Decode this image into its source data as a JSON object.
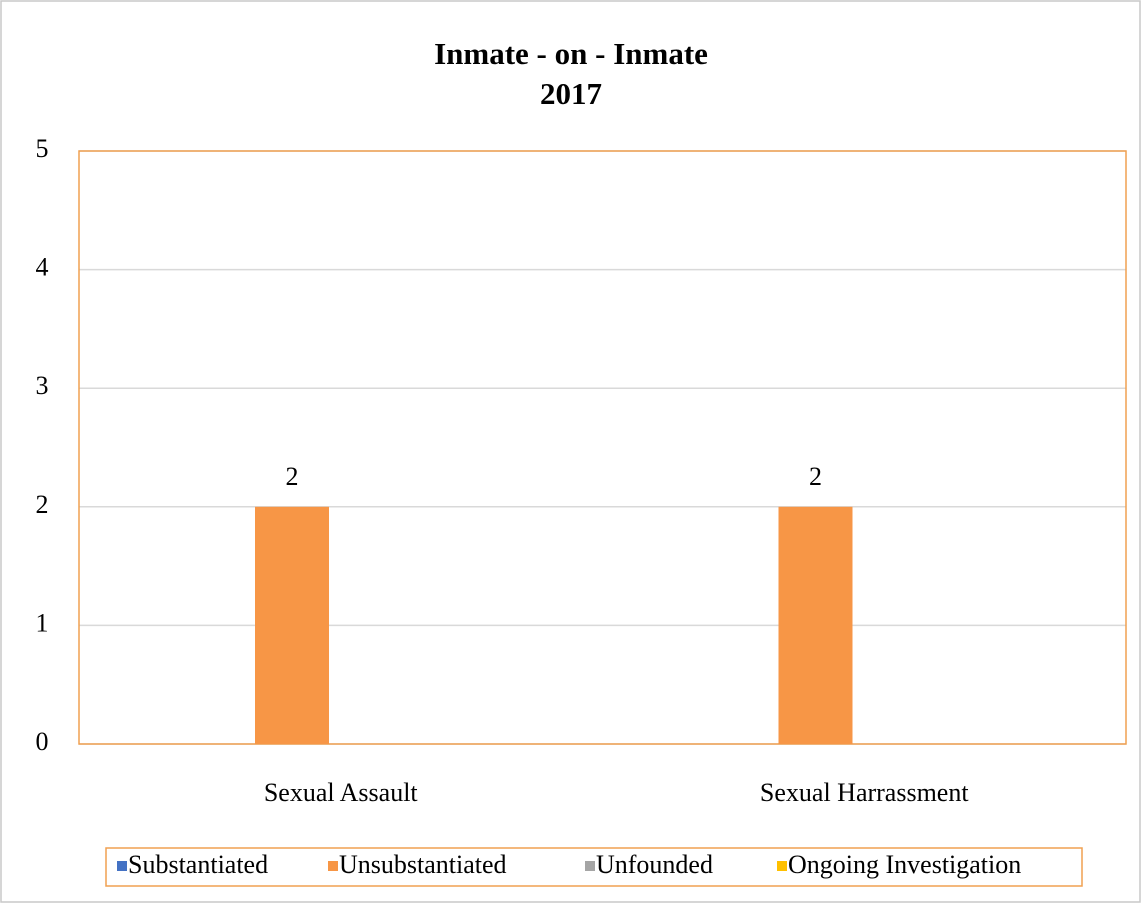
{
  "chart_data": {
    "type": "bar",
    "title": "Inmate - on - Inmate",
    "subtitle": "2017",
    "categories": [
      "Sexual Assault",
      "Sexual Harrassment"
    ],
    "series": [
      {
        "name": "Substantiated",
        "color": "#4472c4",
        "values": [
          0,
          0
        ]
      },
      {
        "name": "Unsubstantiated",
        "color": "#f79646",
        "values": [
          2,
          2
        ],
        "data_labels": true
      },
      {
        "name": "Unfounded",
        "color": "#a5a5a5",
        "values": [
          0,
          0
        ]
      },
      {
        "name": "Ongoing Investigation",
        "color": "#ffc000",
        "values": [
          0,
          0
        ]
      }
    ],
    "ylim": [
      0,
      5
    ],
    "yticks": [
      0,
      1,
      2,
      3,
      4,
      5
    ],
    "grid": true,
    "legend": "bottom"
  }
}
